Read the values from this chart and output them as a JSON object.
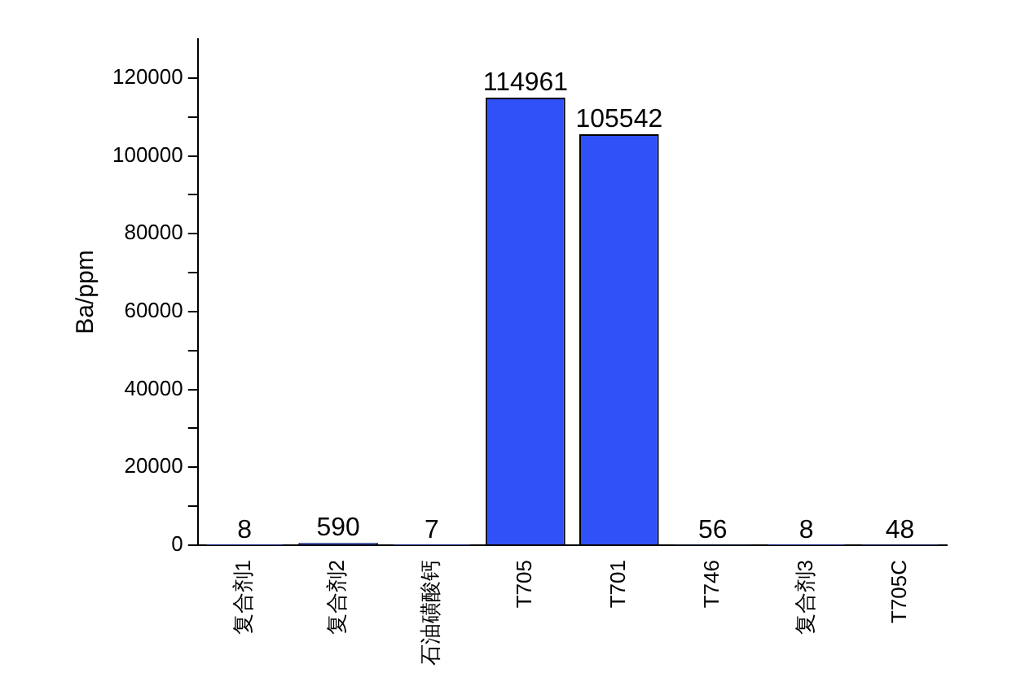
{
  "chart_data": {
    "type": "bar",
    "ylabel": "Ba/ppm",
    "categories": [
      "复合剂1",
      "复合剂2",
      "石油磺酸钙",
      "T705",
      "T701",
      "T746",
      "复合剂3",
      "T705C"
    ],
    "values": [
      8,
      590,
      7,
      114961,
      105542,
      56,
      8,
      48
    ],
    "color": "#3050f8",
    "data_labels": true,
    "ylim": [
      0,
      130000
    ],
    "yticks": [
      0,
      {
        "value": 10000,
        "label": null
      },
      20000,
      {
        "value": 30000,
        "label": null
      },
      40000,
      {
        "value": 50000,
        "label": null
      },
      60000,
      {
        "value": 70000,
        "label": null
      },
      80000,
      {
        "value": 90000,
        "label": null
      },
      100000,
      {
        "value": 110000,
        "label": null
      },
      120000
    ],
    "grid": false,
    "legend": false
  }
}
